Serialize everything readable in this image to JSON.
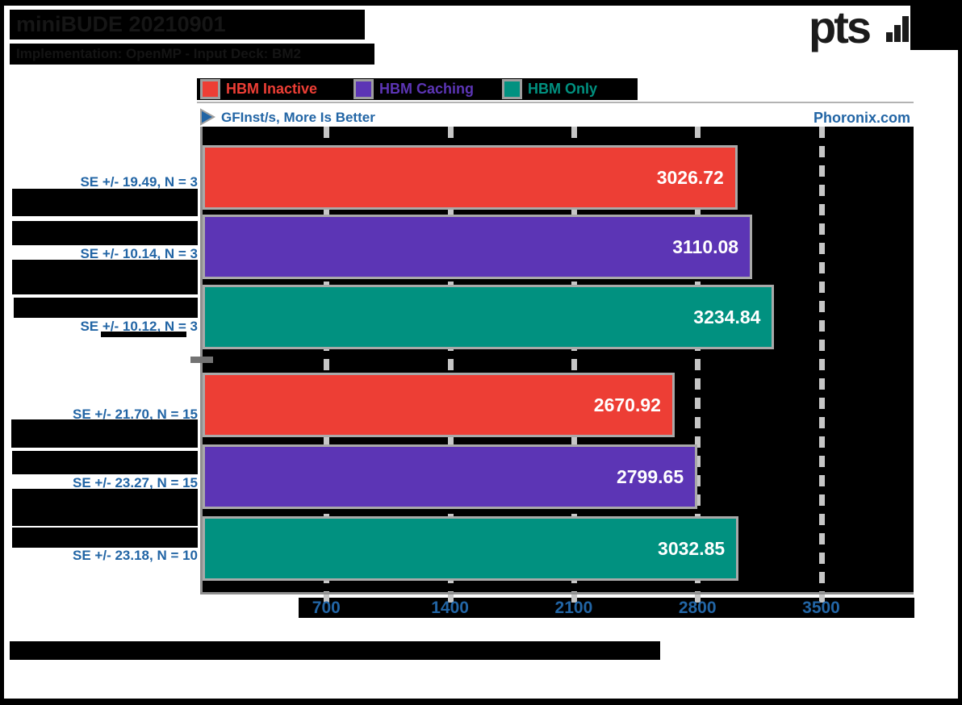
{
  "header": {
    "title": "miniBUDE 20210901",
    "subtitle": "Implementation: OpenMP - Input Deck: BM2",
    "logo_text": "pts"
  },
  "legend": {
    "items": [
      {
        "label": "HBM Inactive",
        "color": "#ed3e35"
      },
      {
        "label": "HBM Caching",
        "color": "#5c35b5"
      },
      {
        "label": "HBM Only",
        "color": "#019180"
      }
    ]
  },
  "axis": {
    "better_label": "GFInst/s, More Is Better",
    "watermark": "Phoronix.com",
    "ticks": [
      "700",
      "1400",
      "2100",
      "2800",
      "3500"
    ]
  },
  "bars": [
    {
      "series": "HBM Inactive",
      "value": "3026.72",
      "se_label": "SE +/- 19.49, N = 3",
      "color": "#ed3e35"
    },
    {
      "series": "HBM Caching",
      "value": "3110.08",
      "se_label": "SE +/- 10.14, N = 3",
      "color": "#5c35b5"
    },
    {
      "series": "HBM Only",
      "value": "3234.84",
      "se_label": "SE +/- 10.12, N = 3",
      "color": "#019180"
    },
    {
      "series": "HBM Inactive",
      "value": "2670.92",
      "se_label": "SE +/- 21.70, N = 15",
      "color": "#ed3e35"
    },
    {
      "series": "HBM Caching",
      "value": "2799.65",
      "se_label": "SE +/- 23.27, N = 15",
      "color": "#5c35b5"
    },
    {
      "series": "HBM Only",
      "value": "3032.85",
      "se_label": "SE +/- 23.18, N = 10",
      "color": "#019180"
    }
  ],
  "chart_data": {
    "type": "bar",
    "orientation": "horizontal",
    "title": "miniBUDE 20210901",
    "subtitle": "Implementation: OpenMP - Input Deck: BM2",
    "value_axis_label": "GFInst/s, More Is Better",
    "watermark": "Phoronix.com",
    "legend_position": "top",
    "grid": "dashed-vertical",
    "x_ticks": [
      700,
      1400,
      2100,
      2800,
      3500
    ],
    "xlim": [
      0,
      4000
    ],
    "categories": [
      "",
      ""
    ],
    "series": [
      {
        "name": "HBM Inactive",
        "values": [
          3026.72,
          2670.92
        ],
        "se": [
          19.49,
          21.7
        ],
        "n": [
          3,
          15
        ]
      },
      {
        "name": "HBM Caching",
        "values": [
          3110.08,
          2799.65
        ],
        "se": [
          10.14,
          23.27
        ],
        "n": [
          3,
          15
        ]
      },
      {
        "name": "HBM Only",
        "values": [
          3234.84,
          3032.85
        ],
        "se": [
          10.12,
          23.18
        ],
        "n": [
          3,
          10
        ]
      }
    ]
  },
  "colors": {
    "accent_blue": "#2265a5",
    "bar_border": "#a9a9a9",
    "plot_background": "#000000",
    "dash_gridline": "#c6c6c6"
  }
}
